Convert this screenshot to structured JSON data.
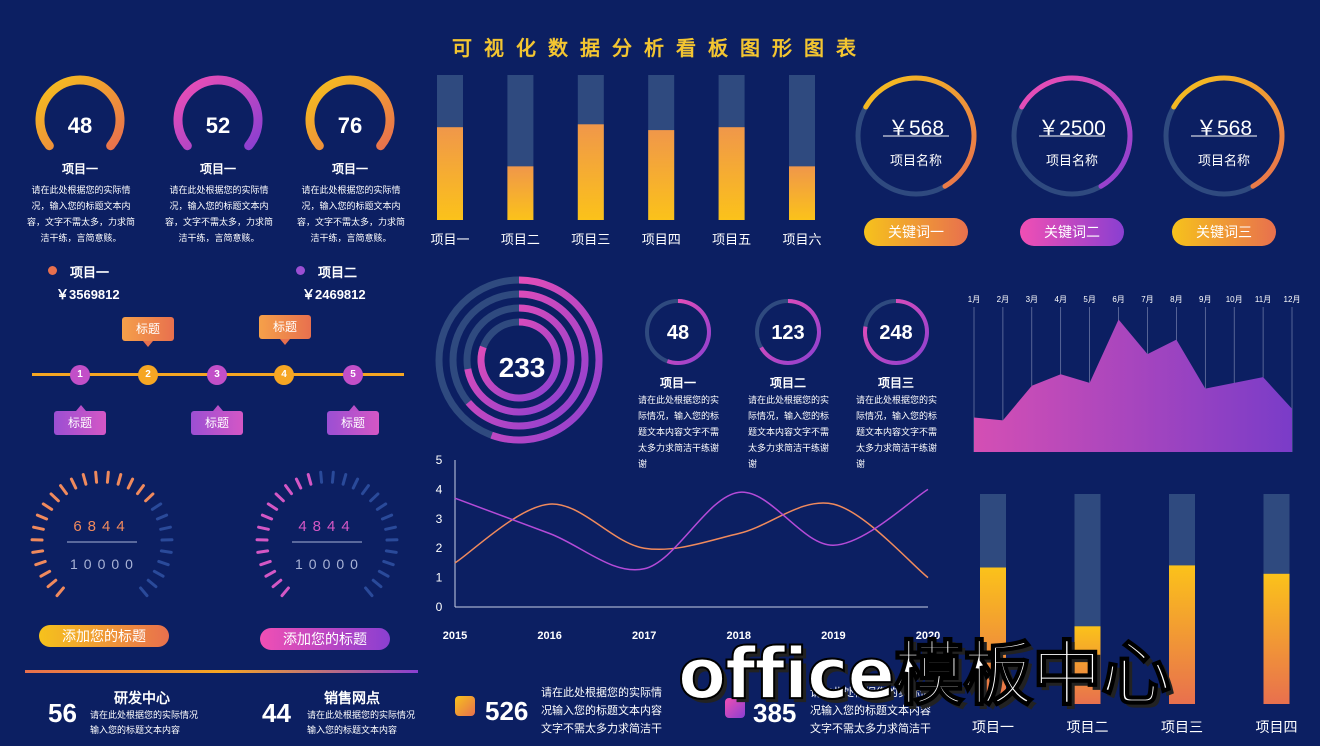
{
  "page": {
    "title": "可视化数据分析看板图形图表"
  },
  "top_rings": [
    {
      "value": "48",
      "label": "项目一",
      "desc": "请在此处根据您的实际情况，输入您的标题文本内容，文字不需太多，力求简洁干练，言简意赅。"
    },
    {
      "value": "52",
      "label": "项目一",
      "desc": "请在此处根据您的实际情况，输入您的标题文本内容，文字不需太多，力求简洁干练，言简意赅。"
    },
    {
      "value": "76",
      "label": "项目一",
      "desc": "请在此处根据您的实际情况，输入您的标题文本内容，文字不需太多，力求简洁干练，言简意赅。"
    }
  ],
  "money": [
    {
      "label": "项目一",
      "value": "￥3569812",
      "color": "#e8704e"
    },
    {
      "label": "项目二",
      "value": "￥2469812",
      "color": "#9b4fd3"
    }
  ],
  "timeline": {
    "steps": [
      "1",
      "2",
      "3",
      "4",
      "5"
    ],
    "top_tags": [
      "标题",
      "标题"
    ],
    "bottom_tags": [
      "标题",
      "标题",
      "标题"
    ]
  },
  "gauges": [
    {
      "top": "6844",
      "bottom": "10000",
      "color": "#f08a5d"
    },
    {
      "top": "4844",
      "bottom": "10000",
      "color": "#d457c5"
    }
  ],
  "add_title_buttons": [
    "添加您的标题",
    "添加您的标题"
  ],
  "bottom_stats": [
    {
      "num": "56",
      "title": "研发中心",
      "desc": "请在此处根据您的实际情况输入您的标题文本内容"
    },
    {
      "num": "44",
      "title": "销售网点",
      "desc": "请在此处根据您的实际情况输入您的标题文本内容"
    }
  ],
  "bottom_legend": [
    {
      "num": "526",
      "desc": "请在此处根据您的实际情况输入您的标题文本内容文字不需太多力求简洁干"
    },
    {
      "num": "385",
      "desc": "请在此处根据您的实际情况输入您的标题文本内容文字不需太多力求简洁干"
    }
  ],
  "money_rings": [
    {
      "value": "￥568",
      "label": "项目名称",
      "pill": "关键词一"
    },
    {
      "value": "￥2500",
      "label": "项目名称",
      "pill": "关键词二"
    },
    {
      "value": "￥568",
      "label": "项目名称",
      "pill": "关键词三"
    }
  ],
  "concentric": {
    "value": "233"
  },
  "mid_rings": [
    {
      "value": "48",
      "label": "项目一",
      "desc": "请在此处根据您的实际情况，输入您的标题文本内容文字不需太多力求简洁干练谢谢"
    },
    {
      "value": "123",
      "label": "项目二",
      "desc": "请在此处根据您的实际情况，输入您的标题文本内容文字不需太多力求简洁干练谢谢"
    },
    {
      "value": "248",
      "label": "项目三",
      "desc": "请在此处根据您的实际情况，输入您的标题文本内容文字不需太多力求简洁干练谢谢"
    }
  ],
  "watermark": "office模板中心",
  "chart_data": [
    {
      "type": "bar",
      "categories": [
        "项目一",
        "项目二",
        "项目三",
        "项目四",
        "项目五",
        "项目六"
      ],
      "values": [
        64,
        37,
        66,
        62,
        64,
        37
      ],
      "ylim": [
        0,
        100
      ],
      "colors": {
        "fill": "#f6c21c",
        "track": "#2f4a7f"
      }
    },
    {
      "type": "line",
      "x": [
        2015,
        2016,
        2017,
        2018,
        2019,
        2020
      ],
      "ylim": [
        0,
        5
      ],
      "yticks": [
        0,
        1,
        2,
        3,
        4,
        5
      ],
      "series": [
        {
          "values": [
            1.5,
            3.5,
            2.0,
            2.5,
            3.5,
            1.0
          ],
          "color": "#f08a5d"
        },
        {
          "values": [
            3.7,
            2.5,
            1.3,
            3.9,
            2.1,
            4.0
          ],
          "color": "#b44bd8"
        }
      ]
    },
    {
      "type": "area",
      "x": [
        "1月",
        "2月",
        "3月",
        "4月",
        "5月",
        "6月",
        "7月",
        "8月",
        "9月",
        "10月",
        "11月",
        "12月"
      ],
      "values": [
        1.2,
        1.1,
        2.3,
        2.7,
        2.4,
        4.6,
        3.4,
        3.9,
        2.2,
        2.4,
        2.6,
        1.5
      ],
      "ylim": [
        0,
        5
      ]
    },
    {
      "type": "bar",
      "categories": [
        "项目一",
        "项目二",
        "项目三",
        "项目四"
      ],
      "values": [
        65,
        37,
        66,
        62
      ],
      "ylim": [
        0,
        100
      ],
      "colors": {
        "fill": "#f6c21c",
        "track": "#2f4a7f"
      }
    }
  ]
}
